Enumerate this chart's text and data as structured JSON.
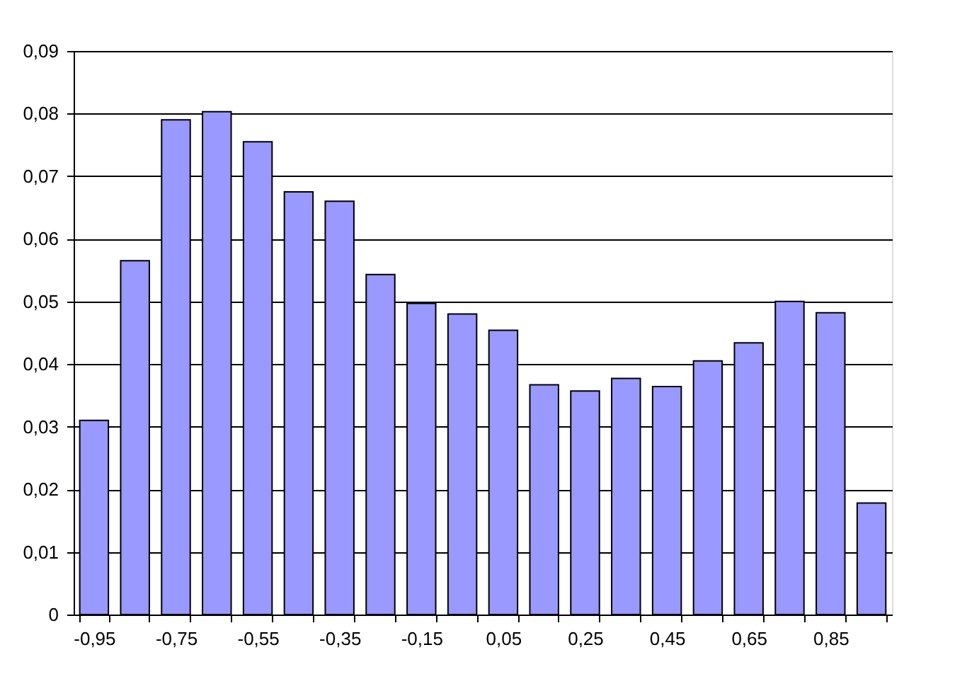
{
  "chart_data": {
    "type": "bar",
    "categories": [
      "-0,95",
      null,
      "-0,75",
      null,
      "-0,55",
      null,
      "-0,35",
      null,
      "-0,15",
      null,
      "0,05",
      null,
      "0,25",
      null,
      "0,45",
      null,
      "0,65",
      null,
      "0,85",
      null
    ],
    "values": [
      0.031,
      0.0565,
      0.079,
      0.0803,
      0.0755,
      0.0675,
      0.066,
      0.0543,
      0.0497,
      0.048,
      0.0454,
      0.0367,
      0.0357,
      0.0377,
      0.0364,
      0.0405,
      0.0434,
      0.05,
      0.0482,
      0.0178
    ],
    "color": "#9999ff",
    "ylim": [
      0,
      0.09
    ],
    "yticks": [
      0,
      {
        "value": 0.01,
        "label": "0,01"
      },
      {
        "value": 0.02,
        "label": "0,02"
      },
      {
        "value": 0.03,
        "label": "0,03"
      },
      {
        "value": 0.04,
        "label": "0,04"
      },
      {
        "value": 0.05,
        "label": "0,05"
      },
      {
        "value": 0.06,
        "label": "0,06"
      },
      {
        "value": 0.07,
        "label": "0,07"
      },
      {
        "value": 0.08,
        "label": "0,08"
      },
      {
        "value": 0.09,
        "label": "0,09"
      }
    ],
    "grid": "y"
  }
}
